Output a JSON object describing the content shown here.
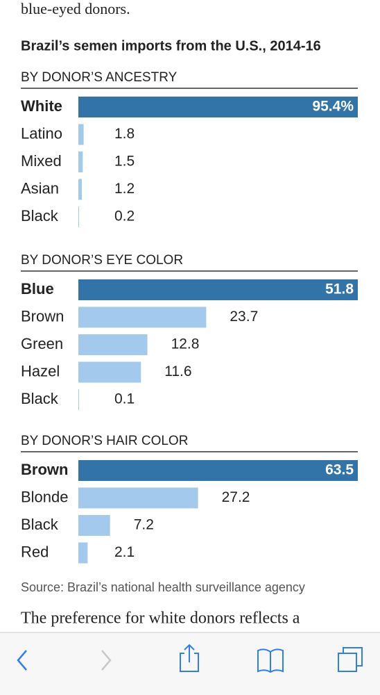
{
  "article": {
    "intro_tail": "blue-eyed donors.",
    "next_paragraph": "The preference for white donors reflects a"
  },
  "figure": {
    "title": "Brazil’s semen imports from the U.S., 2014-16",
    "source": "Source: Brazil’s national health surveillance agency"
  },
  "chart_data": [
    {
      "type": "bar",
      "title": "BY DONOR’S ANCESTRY",
      "categories": [
        "White",
        "Latino",
        "Mixed",
        "Asian",
        "Black"
      ],
      "values": [
        95.4,
        1.8,
        1.5,
        1.2,
        0.2
      ],
      "value_labels": [
        "95.4%",
        "1.8",
        "1.5",
        "1.2",
        "0.2"
      ],
      "colors": [
        "#3274a8",
        "#a3c9ec",
        "#a3c9ec",
        "#a3c9ec",
        "#a3c9ec"
      ]
    },
    {
      "type": "bar",
      "title": "BY DONOR’S EYE COLOR",
      "categories": [
        "Blue",
        "Brown",
        "Green",
        "Hazel",
        "Black"
      ],
      "values": [
        51.8,
        23.7,
        12.8,
        11.6,
        0.1
      ],
      "colors": [
        "#3274a8",
        "#a3c9ec",
        "#a3c9ec",
        "#a3c9ec",
        "#a3c9ec"
      ]
    },
    {
      "type": "bar",
      "title": "BY DONOR’S HAIR COLOR",
      "categories": [
        "Brown",
        "Blonde",
        "Black",
        "Red"
      ],
      "values": [
        63.5,
        27.2,
        7.2,
        2.1
      ],
      "colors": [
        "#3274a8",
        "#a3c9ec",
        "#a3c9ec",
        "#a3c9ec"
      ]
    }
  ]
}
